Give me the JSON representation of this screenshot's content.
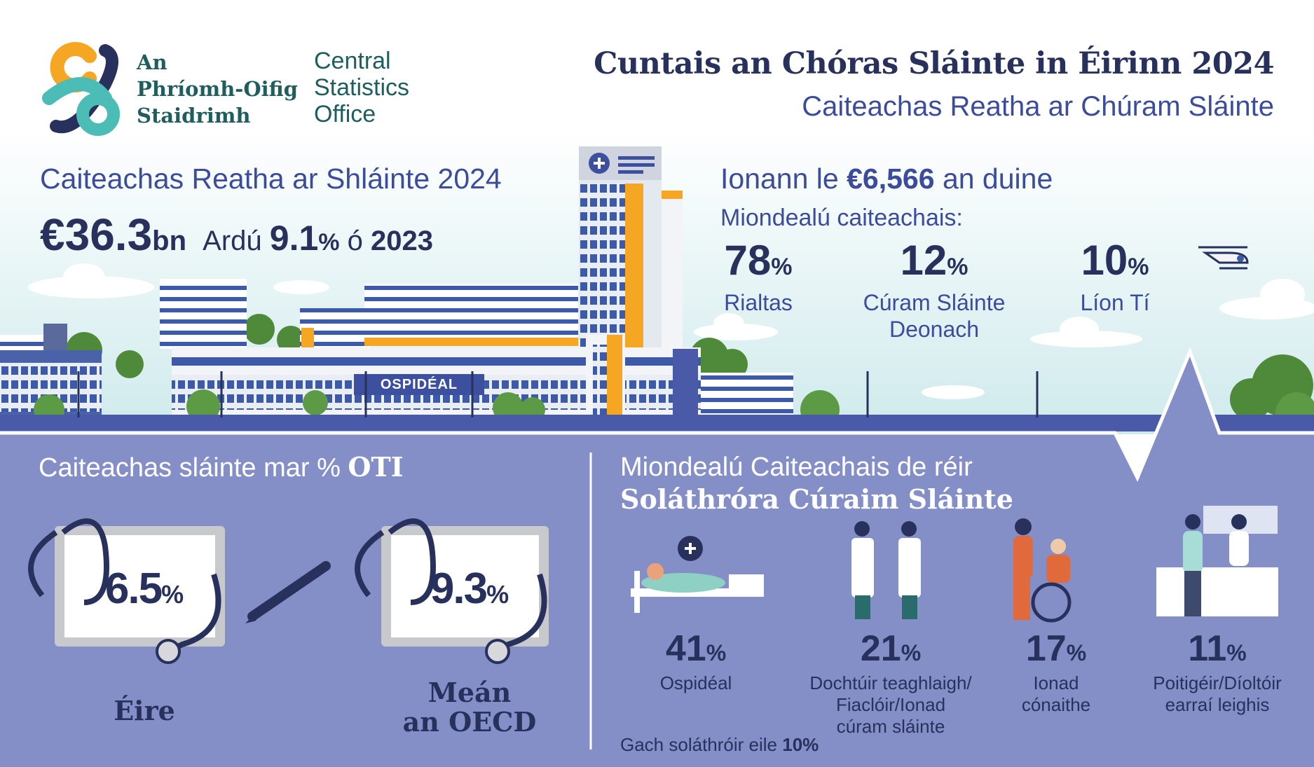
{
  "logo": {
    "irish": [
      "An",
      "Phríomh-Oifig",
      "Staidrimh"
    ],
    "english": [
      "Central",
      "Statistics",
      "Office"
    ]
  },
  "header": {
    "title": "Cuntais an Chóras Sláinte in Éirinn 2024",
    "subtitle": "Caiteachas Reatha ar Chúram Sláinte"
  },
  "current_expenditure": {
    "heading": "Caiteachas Reatha ar Shláinte 2024",
    "amount": "€36.3",
    "amount_unit": "bn",
    "increase_label": "Ardú",
    "increase": "9.1",
    "increase_unit": "%",
    "since_label": "ó",
    "since_year": "2023"
  },
  "per_person": {
    "prefix": "Ionann le",
    "amount": "€6,566",
    "suffix": "an duine",
    "breakdown_heading": "Miondealú caiteachais:",
    "items": [
      {
        "value": "78",
        "unit": "%",
        "label_lines": [
          "Rialtas"
        ]
      },
      {
        "value": "12",
        "unit": "%",
        "label_lines": [
          "Cúram Sláinte",
          "Deonach"
        ]
      },
      {
        "value": "10",
        "unit": "%",
        "label_lines": [
          "Líon Tí"
        ]
      }
    ]
  },
  "building_sign": "OSPIDÉAL",
  "gdp": {
    "heading": "Caiteachas sláinte mar %",
    "heading_bold": "OTI",
    "items": [
      {
        "value": "6.5",
        "unit": "%",
        "label_lines": [
          "Éire"
        ]
      },
      {
        "value": "9.3",
        "unit": "%",
        "label_lines": [
          "Meán",
          "an OECD"
        ]
      }
    ]
  },
  "providers": {
    "heading": "Miondealú Caiteachais de réir",
    "heading_bold": "Soláthróra Cúraim Sláinte",
    "items": [
      {
        "value": "41",
        "unit": "%",
        "label_lines": [
          "Ospidéal"
        ]
      },
      {
        "value": "21",
        "unit": "%",
        "label_lines": [
          "Dochtúir teaghlaigh/",
          "Fiaclóir/Ionad",
          "cúram sláinte"
        ]
      },
      {
        "value": "17",
        "unit": "%",
        "label_lines": [
          "Ionad",
          "cónaithe"
        ]
      },
      {
        "value": "11",
        "unit": "%",
        "label_lines": [
          "Poitigéir/Díoltóir",
          "earraí leighis"
        ]
      }
    ],
    "other_label": "Gach soláthróir eile",
    "other_value": "10",
    "other_unit": "%"
  }
}
